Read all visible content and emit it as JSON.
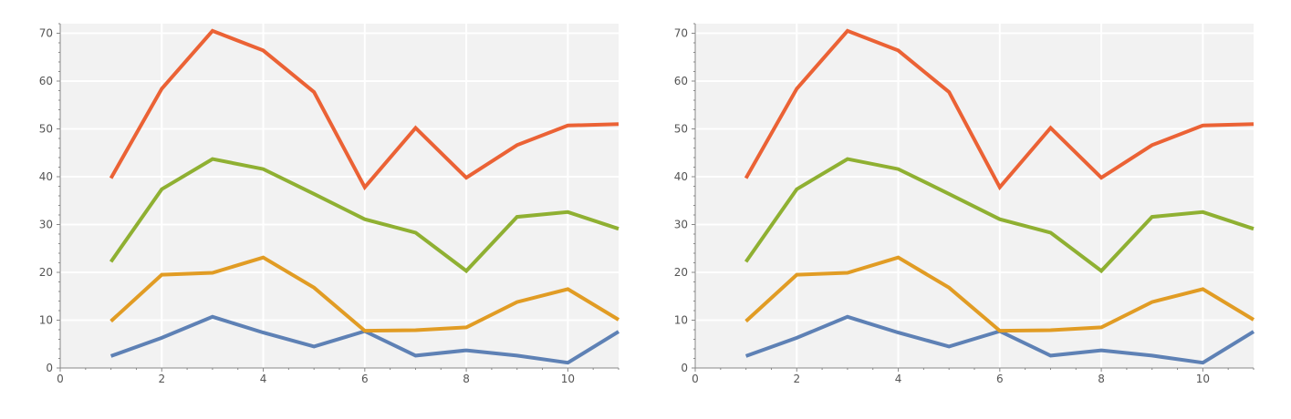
{
  "chart_data": [
    {
      "type": "line",
      "title": "",
      "xlabel": "",
      "ylabel": "",
      "xlim": [
        0,
        11
      ],
      "ylim": [
        0,
        72
      ],
      "xticks": [
        0,
        2,
        4,
        6,
        8,
        10
      ],
      "yticks": [
        0,
        10,
        20,
        30,
        40,
        50,
        60,
        70
      ],
      "grid": true,
      "background": "#f2f2f2",
      "x": [
        1,
        2,
        3,
        4,
        5,
        6,
        7,
        8,
        9,
        10,
        11
      ],
      "series": [
        {
          "color": "#5e81b5",
          "values": [
            2.5,
            6.3,
            10.7,
            7.4,
            4.5,
            7.7,
            2.6,
            3.7,
            2.6,
            1.1,
            7.6
          ]
        },
        {
          "color": "#e19c24",
          "values": [
            9.8,
            19.5,
            19.9,
            23.1,
            16.8,
            7.8,
            7.9,
            8.5,
            13.8,
            16.5,
            10.1
          ]
        },
        {
          "color": "#8fb032",
          "values": [
            22.2,
            37.4,
            43.7,
            41.6,
            36.4,
            31.1,
            28.3,
            20.3,
            31.6,
            32.6,
            29.1
          ]
        },
        {
          "color": "#eb6235",
          "values": [
            39.7,
            58.4,
            70.5,
            66.4,
            57.7,
            37.8,
            50.2,
            39.8,
            46.6,
            50.7,
            51.0
          ]
        }
      ]
    },
    {
      "type": "line",
      "title": "",
      "xlabel": "",
      "ylabel": "",
      "xlim": [
        0,
        11
      ],
      "ylim": [
        0,
        72
      ],
      "xticks": [
        0,
        2,
        4,
        6,
        8,
        10
      ],
      "yticks": [
        0,
        10,
        20,
        30,
        40,
        50,
        60,
        70
      ],
      "grid": true,
      "background": "#f2f2f2",
      "x": [
        1,
        2,
        3,
        4,
        5,
        6,
        7,
        8,
        9,
        10,
        11
      ],
      "series": [
        {
          "color": "#5e81b5",
          "values": [
            2.5,
            6.3,
            10.7,
            7.4,
            4.5,
            7.7,
            2.6,
            3.7,
            2.6,
            1.1,
            7.6
          ]
        },
        {
          "color": "#e19c24",
          "values": [
            9.8,
            19.5,
            19.9,
            23.1,
            16.8,
            7.8,
            7.9,
            8.5,
            13.8,
            16.5,
            10.1
          ]
        },
        {
          "color": "#8fb032",
          "values": [
            22.2,
            37.4,
            43.7,
            41.6,
            36.4,
            31.1,
            28.3,
            20.3,
            31.6,
            32.6,
            29.1
          ]
        },
        {
          "color": "#eb6235",
          "values": [
            39.7,
            58.4,
            70.5,
            66.4,
            57.7,
            37.8,
            50.2,
            39.8,
            46.6,
            50.7,
            51.0
          ]
        }
      ]
    }
  ]
}
